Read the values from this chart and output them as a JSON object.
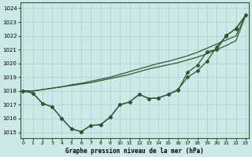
{
  "title": "Graphe pression niveau de la mer (hPa)",
  "bg_color": "#cde8e8",
  "grid_color": "#b0d4cc",
  "line_color": "#2d5a2d",
  "xlim": [
    -0.3,
    23.3
  ],
  "ylim": [
    1014.6,
    1024.4
  ],
  "yticks": [
    1015,
    1016,
    1017,
    1018,
    1019,
    1020,
    1021,
    1022,
    1023,
    1024
  ],
  "xticks": [
    0,
    1,
    2,
    3,
    4,
    5,
    6,
    7,
    8,
    9,
    10,
    11,
    12,
    13,
    14,
    15,
    16,
    17,
    18,
    19,
    20,
    21,
    22,
    23
  ],
  "series_no_marker": [
    [
      1018.0,
      1018.0,
      1018.1,
      1018.2,
      1018.3,
      1018.4,
      1018.5,
      1018.6,
      1018.75,
      1018.9,
      1019.05,
      1019.2,
      1019.4,
      1019.6,
      1019.75,
      1019.9,
      1020.05,
      1020.25,
      1020.45,
      1020.7,
      1021.0,
      1021.3,
      1021.65,
      1023.5
    ],
    [
      1018.0,
      1018.0,
      1018.1,
      1018.2,
      1018.3,
      1018.45,
      1018.55,
      1018.7,
      1018.85,
      1019.0,
      1019.2,
      1019.4,
      1019.6,
      1019.8,
      1020.0,
      1020.15,
      1020.35,
      1020.55,
      1020.8,
      1021.1,
      1021.4,
      1021.7,
      1022.0,
      1023.5
    ]
  ],
  "series_with_marker": [
    [
      1018.0,
      1017.85,
      1017.1,
      1016.85,
      1016.0,
      1015.25,
      1015.05,
      1015.5,
      1015.55,
      1016.1,
      1017.0,
      1017.2,
      1017.75,
      1017.45,
      1017.5,
      1017.75,
      1018.05,
      1019.35,
      1019.85,
      1020.85,
      1021.0,
      1022.05,
      1022.5,
      1023.5
    ],
    [
      1018.0,
      1017.85,
      1017.1,
      1016.85,
      1016.0,
      1015.25,
      1015.05,
      1015.5,
      1015.55,
      1016.1,
      1017.0,
      1017.2,
      1017.75,
      1017.45,
      1017.5,
      1017.75,
      1018.1,
      1019.0,
      1019.45,
      1020.15,
      1021.2,
      1022.0,
      1022.55,
      1023.5
    ]
  ]
}
